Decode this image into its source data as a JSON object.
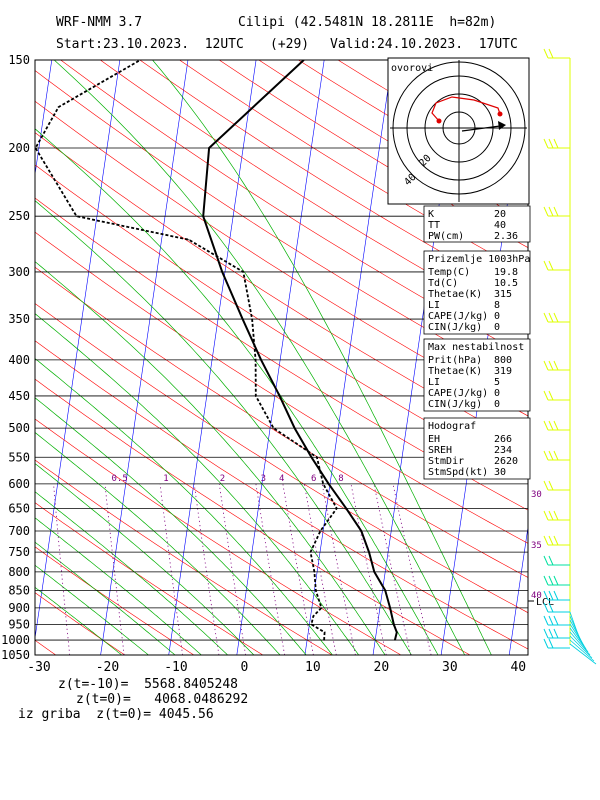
{
  "header": {
    "model": "WRF-NMM 3.7",
    "station": "Cilipi (42.5481N 18.2811E  h=82m)",
    "start": "Start:23.10.2023.  12UTC",
    "lead": "(+29)",
    "valid": "Valid:24.10.2023.  17UTC"
  },
  "colors": {
    "isotherm": "#0000ff",
    "dry_adiabat": "#ff0000",
    "moist_adiabat": "#00b000",
    "mixing_ratio": "#800080",
    "dewpoint_curve": "#000000",
    "temperature_curve": "#000000",
    "wind_barbs": "#dfff00"
  },
  "chart_data": {
    "type": "skew-t log-p",
    "x_axis_label": "temperature (°C)",
    "xticks": [
      -30,
      -20,
      -10,
      0,
      10,
      20,
      30,
      40
    ],
    "xtick_labels": [
      "-30",
      "-20",
      "-10",
      "0",
      "10",
      "20",
      "30",
      "40"
    ],
    "pressure_ticks": [
      150,
      200,
      250,
      300,
      350,
      400,
      450,
      500,
      550,
      600,
      650,
      700,
      750,
      800,
      850,
      900,
      950,
      1000,
      1050
    ],
    "pressure_labels": [
      "150",
      "200",
      "250",
      "300",
      "350",
      "400",
      "450",
      "500",
      "550",
      "600",
      "650",
      "700",
      "750",
      "800",
      "850",
      "900",
      "950",
      "1000",
      "1050"
    ],
    "pressure_range": [
      150,
      1050
    ],
    "temperature_profile": [
      {
        "p": 1000,
        "t": 22.9
      },
      {
        "p": 975,
        "t": 23.0
      },
      {
        "p": 950,
        "t": 22.4
      },
      {
        "p": 900,
        "t": 21.5
      },
      {
        "p": 850,
        "t": 20.4
      },
      {
        "p": 800,
        "t": 18.4
      },
      {
        "p": 750,
        "t": 17.2
      },
      {
        "p": 700,
        "t": 15.6
      },
      {
        "p": 650,
        "t": 12.9
      },
      {
        "p": 600,
        "t": 9.8
      },
      {
        "p": 550,
        "t": 6.7
      },
      {
        "p": 500,
        "t": 3.6
      },
      {
        "p": 450,
        "t": 0.7
      },
      {
        "p": 400,
        "t": -2.8
      },
      {
        "p": 350,
        "t": -6.4
      },
      {
        "p": 300,
        "t": -10.4
      },
      {
        "p": 250,
        "t": -14.4
      },
      {
        "p": 200,
        "t": -15.0
      },
      {
        "p": 150,
        "t": -3.0
      }
    ],
    "dewpoint_profile": [
      {
        "p": 1000,
        "t": 12.5
      },
      {
        "p": 975,
        "t": 12.4
      },
      {
        "p": 950,
        "t": 10.3
      },
      {
        "p": 925,
        "t": 10.4
      },
      {
        "p": 900,
        "t": 11.4
      },
      {
        "p": 850,
        "t": 10.2
      },
      {
        "p": 800,
        "t": 9.6
      },
      {
        "p": 750,
        "t": 8.6
      },
      {
        "p": 700,
        "t": 9.6
      },
      {
        "p": 650,
        "t": 11.5
      },
      {
        "p": 600,
        "t": 9.0
      },
      {
        "p": 550,
        "t": 7.5
      },
      {
        "p": 500,
        "t": 0.5
      },
      {
        "p": 450,
        "t": -2.8
      },
      {
        "p": 400,
        "t": -3.6
      },
      {
        "p": 350,
        "t": -5.0
      },
      {
        "p": 300,
        "t": -7.3
      },
      {
        "p": 270,
        "t": -16.0
      },
      {
        "p": 250,
        "t": -33.0
      },
      {
        "p": 200,
        "t": -40.5
      },
      {
        "p": 175,
        "t": -38.0
      },
      {
        "p": 150,
        "t": -27.0
      }
    ],
    "mixing_ratio_labels": [
      "0.5",
      "1",
      "2",
      "3",
      "4",
      "6",
      "8"
    ],
    "mixing_ratio_label_temps": [
      -20.6,
      -13.8,
      -5.5,
      0.5,
      3.2,
      7.9,
      11.9
    ],
    "side_temp_labels": [
      "30",
      "35",
      "40"
    ],
    "lcl_label": "LCL",
    "lcl_pressure": 880
  },
  "hodograph": {
    "label": "ovorovi",
    "ring_labels": [
      "20",
      "40"
    ]
  },
  "panels": {
    "index": [
      {
        "label": "K",
        "value": "20"
      },
      {
        "label": "TT",
        "value": "40"
      },
      {
        "label": "PW(cm)",
        "value": "2.36"
      }
    ],
    "surface": {
      "title": "Prizemlje 1003hPa",
      "rows": [
        {
          "label": "Temp(C)",
          "value": "19.8"
        },
        {
          "label": "Td(C)",
          "value": "10.5"
        },
        {
          "label": "Thetae(K)",
          "value": "315"
        },
        {
          "label": "LI",
          "value": "8"
        },
        {
          "label": "CAPE(J/kg)",
          "value": "0"
        },
        {
          "label": "CIN(J/kg)",
          "value": "0"
        }
      ]
    },
    "max_unstable": {
      "title": "Max nestabilnost",
      "rows": [
        {
          "label": "Prit(hPa)",
          "value": "800"
        },
        {
          "label": "Thetae(K)",
          "value": "319"
        },
        {
          "label": "LI",
          "value": "5"
        },
        {
          "label": "CAPE(J/kg)",
          "value": "0"
        },
        {
          "label": "CIN(J/kg)",
          "value": "0"
        }
      ]
    },
    "hodograf": {
      "title": "Hodograf",
      "rows": [
        {
          "label": "EH",
          "value": "266"
        },
        {
          "label": "SREH",
          "value": "234"
        },
        {
          "label": "StmDir",
          "value": "2620"
        },
        {
          "label": "StmSpd(kt)",
          "value": "30"
        }
      ]
    }
  },
  "bottom": {
    "line1": "z(t=-10)=  5568.8405248",
    "line2": "z(t=0)=   4068.0486292",
    "line3": "iz griba  z(t=0)= 4045.56"
  }
}
